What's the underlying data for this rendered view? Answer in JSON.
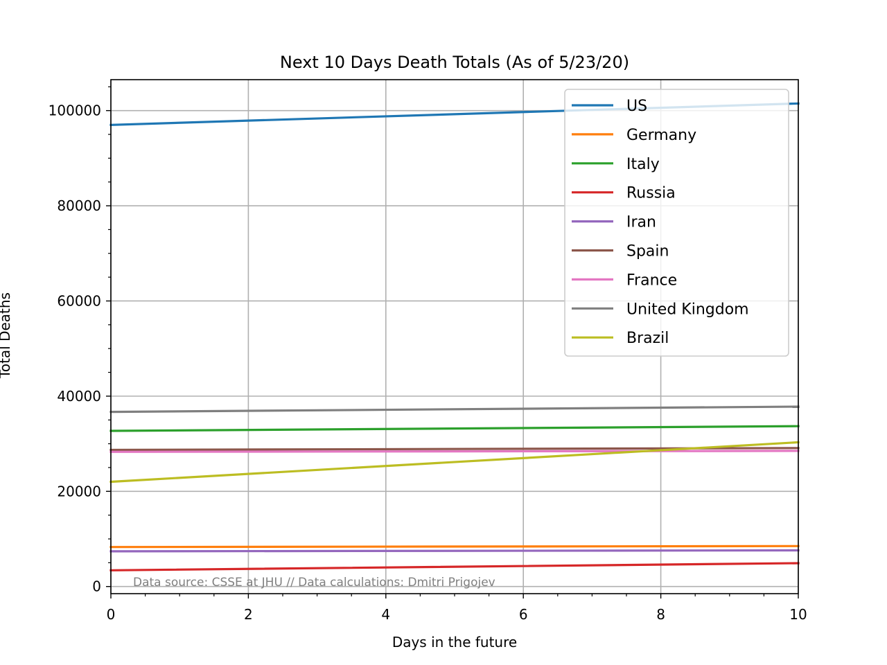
{
  "chart_data": {
    "type": "line",
    "title": "Next 10 Days Death Totals (As of 5/23/20)",
    "xlabel": "Days in the future",
    "ylabel": "Total Deaths",
    "xlim": [
      0,
      10
    ],
    "ylim": [
      -1500,
      106500
    ],
    "xticks": [
      0,
      2,
      4,
      6,
      8,
      10
    ],
    "yticks": [
      0,
      20000,
      40000,
      60000,
      80000,
      100000
    ],
    "grid": true,
    "legend_position": "top-right",
    "annotation": "Data source: CSSE at JHU // Data calculations: Dmitri Prigojev",
    "series": [
      {
        "name": "US",
        "color": "#1f77b4",
        "x": [
          0,
          10
        ],
        "y": [
          97000,
          101500
        ]
      },
      {
        "name": "Germany",
        "color": "#ff7f0e",
        "x": [
          0,
          10
        ],
        "y": [
          8300,
          8500
        ]
      },
      {
        "name": "Italy",
        "color": "#2ca02c",
        "x": [
          0,
          10
        ],
        "y": [
          32700,
          33700
        ]
      },
      {
        "name": "Russia",
        "color": "#d62728",
        "x": [
          0,
          10
        ],
        "y": [
          3400,
          4900
        ]
      },
      {
        "name": "Iran",
        "color": "#9467bd",
        "x": [
          0,
          10
        ],
        "y": [
          7400,
          7600
        ]
      },
      {
        "name": "Spain",
        "color": "#8c564b",
        "x": [
          0,
          10
        ],
        "y": [
          28700,
          29100
        ]
      },
      {
        "name": "France",
        "color": "#e377c2",
        "x": [
          0,
          10
        ],
        "y": [
          28300,
          28500
        ]
      },
      {
        "name": "United Kingdom",
        "color": "#7f7f7f",
        "x": [
          0,
          10
        ],
        "y": [
          36700,
          37800
        ]
      },
      {
        "name": "Brazil",
        "color": "#bcbd22",
        "x": [
          0,
          10
        ],
        "y": [
          22000,
          30300
        ]
      }
    ]
  }
}
